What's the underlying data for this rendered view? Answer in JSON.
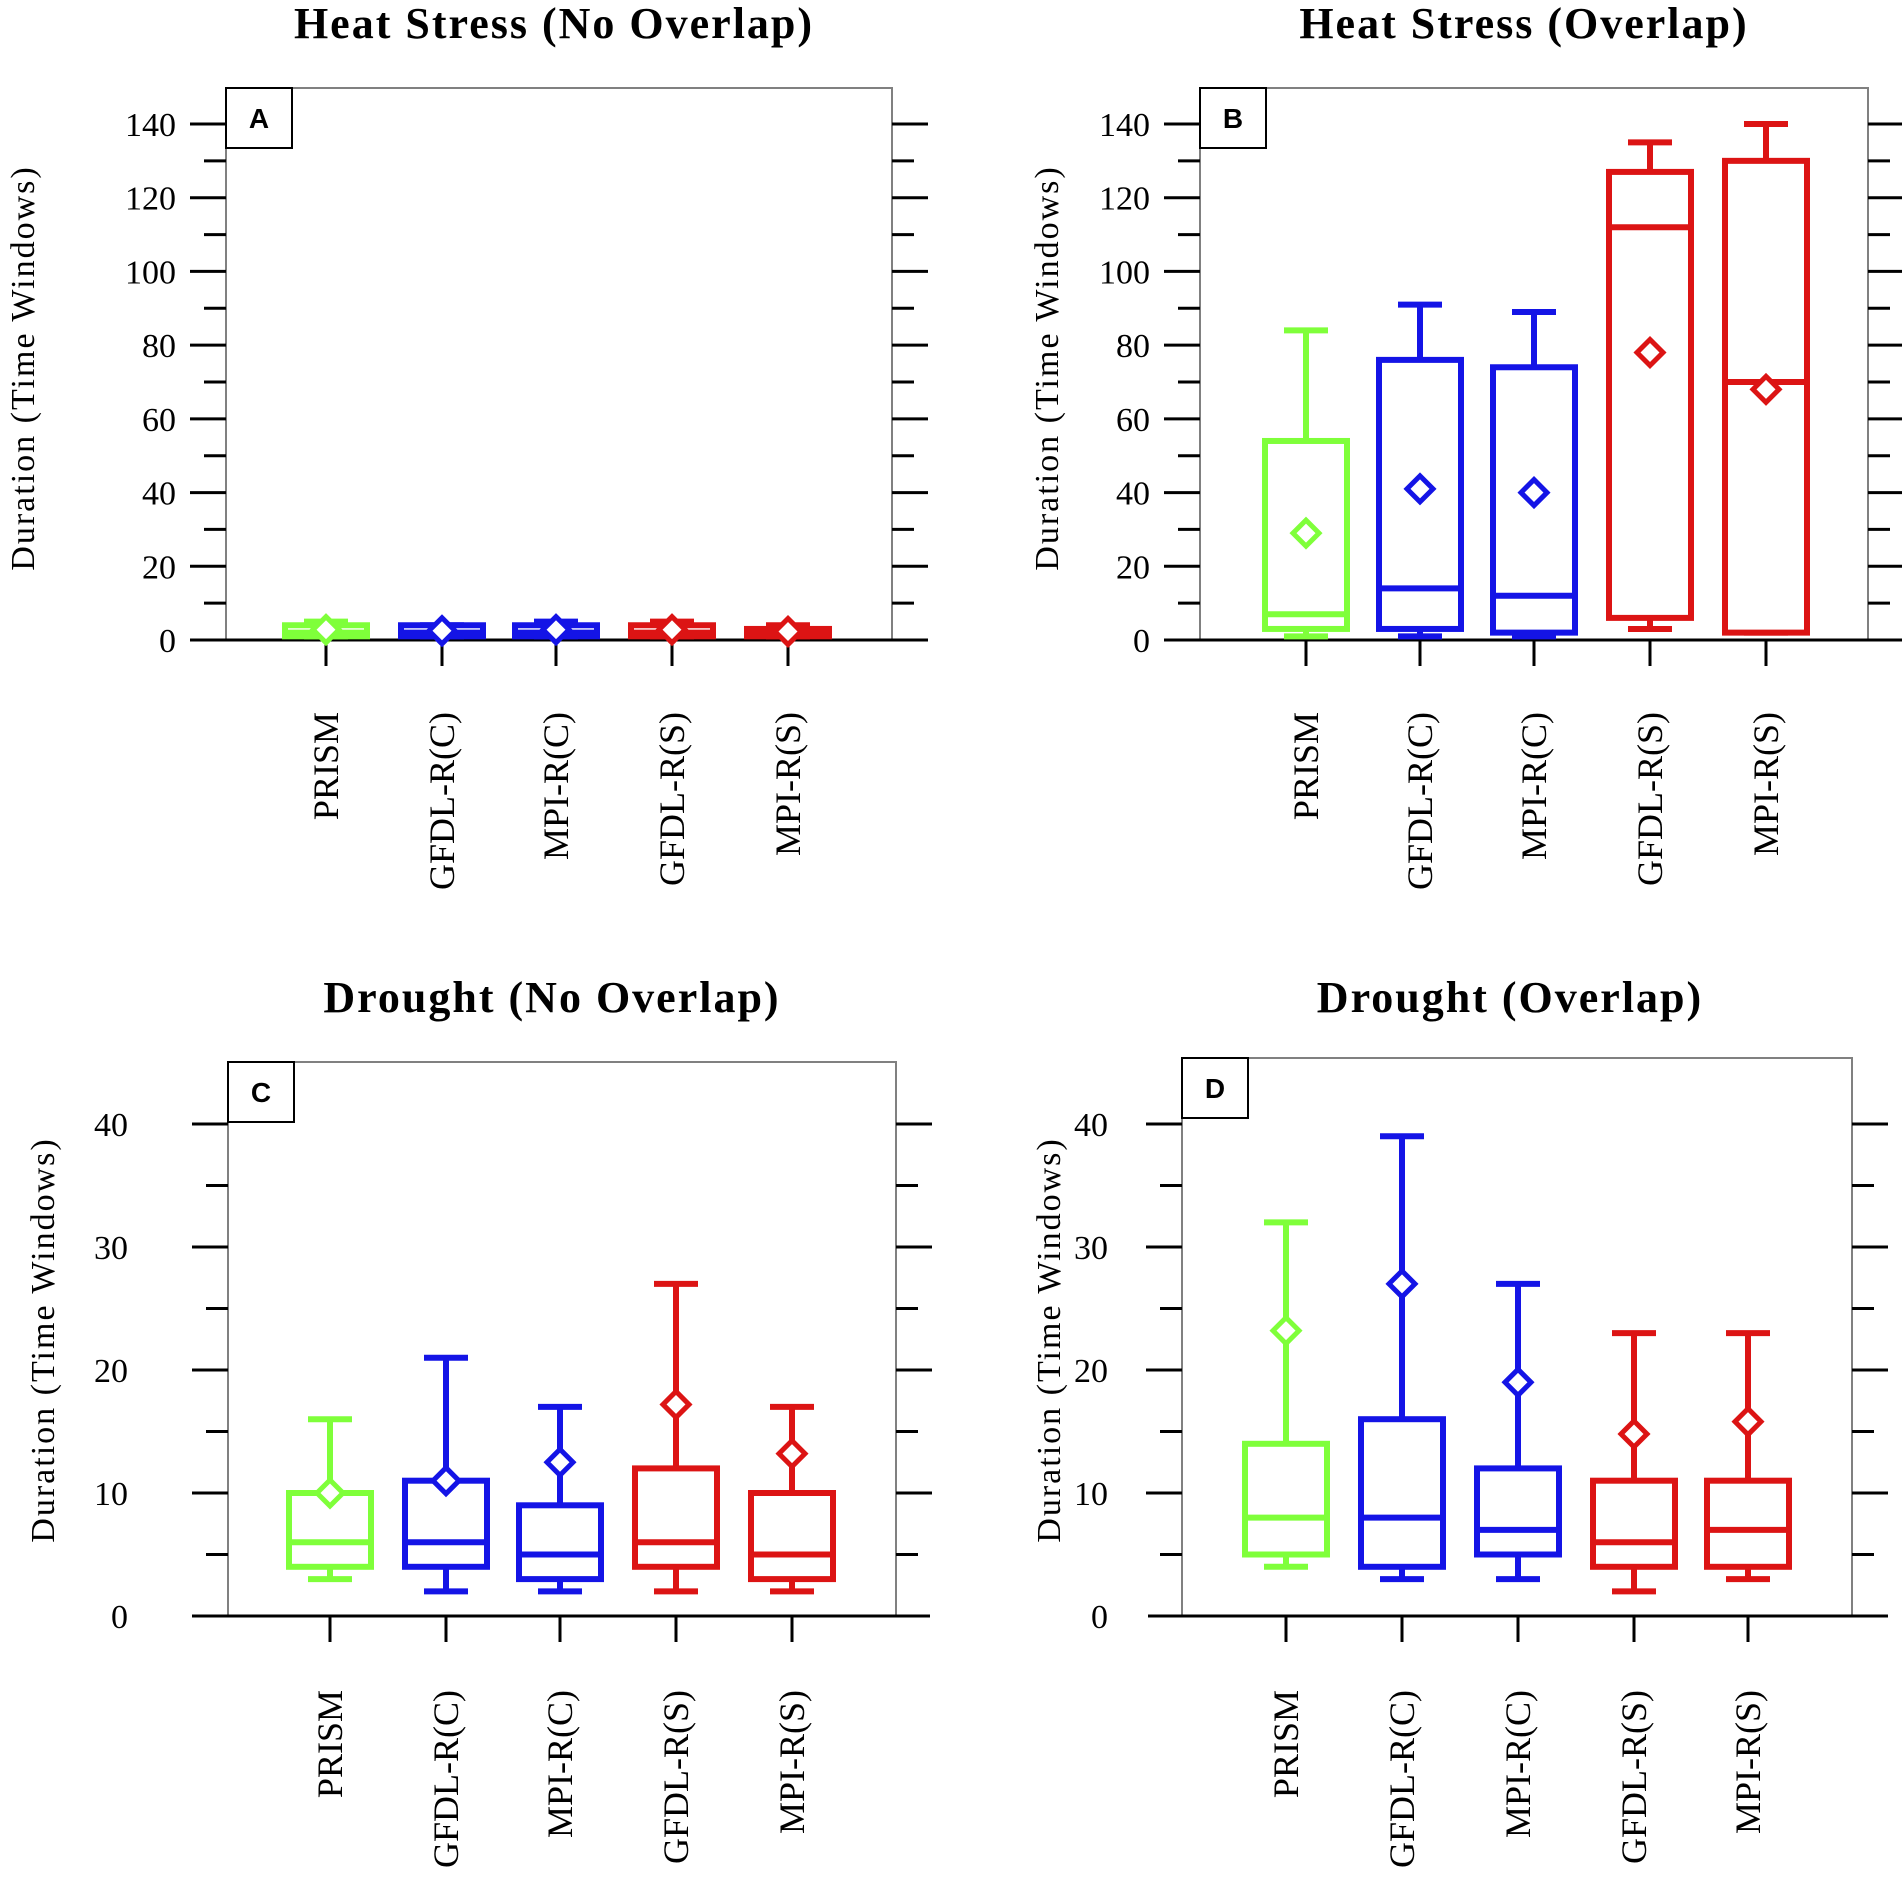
{
  "figure": {
    "colors": {
      "PRISM": "#7fff3a",
      "GFDL-R(C)": "#1414e6",
      "MPI-R(C)": "#1414e6",
      "GFDL-R(S)": "#dc1414",
      "MPI-R(S)": "#dc1414",
      "frame": "#808080",
      "ink": "#000000"
    }
  },
  "chart_data": [
    {
      "type": "box",
      "panel_letter": "A",
      "title": "Heat Stress (No Overlap)",
      "ylabel": "Duration (Time Windows)",
      "ylim": [
        0,
        150
      ],
      "yticks": [
        0,
        20,
        40,
        60,
        80,
        100,
        120,
        140
      ],
      "yminor": 10,
      "categories": [
        "PRISM",
        "GFDL-R(C)",
        "MPI-R(C)",
        "GFDL-R(S)",
        "MPI-R(S)"
      ],
      "boxes": [
        {
          "min": 1,
          "q1": 1,
          "median": 2,
          "q3": 4,
          "max": 5,
          "mean": 2.8
        },
        {
          "min": 1,
          "q1": 1,
          "median": 2,
          "q3": 4,
          "max": 4,
          "mean": 2.5
        },
        {
          "min": 1,
          "q1": 1,
          "median": 2,
          "q3": 4,
          "max": 5,
          "mean": 2.8
        },
        {
          "min": 1,
          "q1": 1,
          "median": 2,
          "q3": 4,
          "max": 5,
          "mean": 2.8
        },
        {
          "min": 1,
          "q1": 1,
          "median": 2,
          "q3": 3,
          "max": 4,
          "mean": 2.3
        }
      ]
    },
    {
      "type": "box",
      "panel_letter": "B",
      "title": "Heat Stress (Overlap)",
      "ylabel": "Duration (Time Windows)",
      "ylim": [
        0,
        150
      ],
      "yticks": [
        0,
        20,
        40,
        60,
        80,
        100,
        120,
        140
      ],
      "yminor": 10,
      "categories": [
        "PRISM",
        "GFDL-R(C)",
        "MPI-R(C)",
        "GFDL-R(S)",
        "MPI-R(S)"
      ],
      "boxes": [
        {
          "min": 1,
          "q1": 3,
          "median": 7,
          "q3": 54,
          "max": 84,
          "mean": 29
        },
        {
          "min": 1,
          "q1": 3,
          "median": 14,
          "q3": 76,
          "max": 91,
          "mean": 41
        },
        {
          "min": 1,
          "q1": 2,
          "median": 12,
          "q3": 74,
          "max": 89,
          "mean": 40
        },
        {
          "min": 3,
          "q1": 6,
          "median": 112,
          "q3": 127,
          "max": 135,
          "mean": 78
        },
        {
          "min": 2,
          "q1": 2,
          "median": 70,
          "q3": 130,
          "max": 140,
          "mean": 68
        }
      ]
    },
    {
      "type": "box",
      "panel_letter": "C",
      "title": "Drought (No Overlap)",
      "ylabel": "Duration (Time Windows)",
      "ylim": [
        0,
        45
      ],
      "yticks": [
        0,
        10,
        20,
        30,
        40
      ],
      "yminor": 5,
      "categories": [
        "PRISM",
        "GFDL-R(C)",
        "MPI-R(C)",
        "GFDL-R(S)",
        "MPI-R(S)"
      ],
      "boxes": [
        {
          "min": 3,
          "q1": 4,
          "median": 6,
          "q3": 10,
          "max": 16,
          "mean": 10
        },
        {
          "min": 2,
          "q1": 4,
          "median": 6,
          "q3": 11,
          "max": 21,
          "mean": 11
        },
        {
          "min": 2,
          "q1": 3,
          "median": 5,
          "q3": 9,
          "max": 17,
          "mean": 12.5
        },
        {
          "min": 2,
          "q1": 4,
          "median": 6,
          "q3": 12,
          "max": 27,
          "mean": 17.2
        },
        {
          "min": 2,
          "q1": 3,
          "median": 5,
          "q3": 10,
          "max": 17,
          "mean": 13.2
        }
      ]
    },
    {
      "type": "box",
      "panel_letter": "D",
      "title": "Drought (Overlap)",
      "ylabel": "Duration (Time Windows)",
      "ylim": [
        0,
        45
      ],
      "yticks": [
        0,
        10,
        20,
        30,
        40
      ],
      "yminor": 5,
      "categories": [
        "PRISM",
        "GFDL-R(C)",
        "MPI-R(C)",
        "GFDL-R(S)",
        "MPI-R(S)"
      ],
      "boxes": [
        {
          "min": 4,
          "q1": 5,
          "median": 8,
          "q3": 14,
          "max": 32,
          "mean": 23.2
        },
        {
          "min": 3,
          "q1": 4,
          "median": 8,
          "q3": 16,
          "max": 39,
          "mean": 27
        },
        {
          "min": 3,
          "q1": 5,
          "median": 7,
          "q3": 12,
          "max": 27,
          "mean": 19
        },
        {
          "min": 2,
          "q1": 4,
          "median": 6,
          "q3": 11,
          "max": 23,
          "mean": 14.8
        },
        {
          "min": 3,
          "q1": 4,
          "median": 7,
          "q3": 11,
          "max": 23,
          "mean": 15.8
        }
      ]
    }
  ]
}
